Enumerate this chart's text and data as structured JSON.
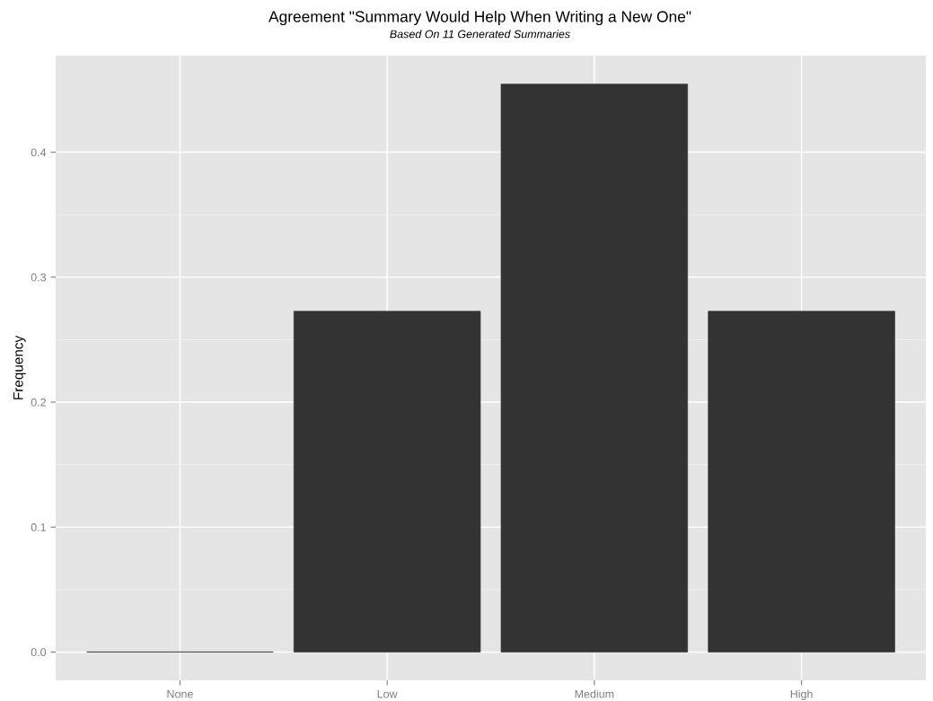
{
  "chart_data": {
    "type": "bar",
    "title": "Agreement \"Summary Would Help When Writing a New One\"",
    "subtitle": "Based On 11 Generated Summaries",
    "ylabel": "Frequency",
    "categories": [
      "None",
      "Low",
      "Medium",
      "High"
    ],
    "values": [
      0,
      0.2727,
      0.4545,
      0.2727
    ],
    "color": "#333333",
    "ylim": [
      -0.0227,
      0.4773
    ],
    "yticks": [
      {
        "value": 0,
        "label": "0.0"
      },
      {
        "value": 0.1,
        "label": "0.1"
      },
      {
        "value": 0.2,
        "label": "0.2"
      },
      {
        "value": 0.3,
        "label": "0.3"
      },
      {
        "value": 0.4,
        "label": "0.4"
      }
    ],
    "grid": true
  }
}
